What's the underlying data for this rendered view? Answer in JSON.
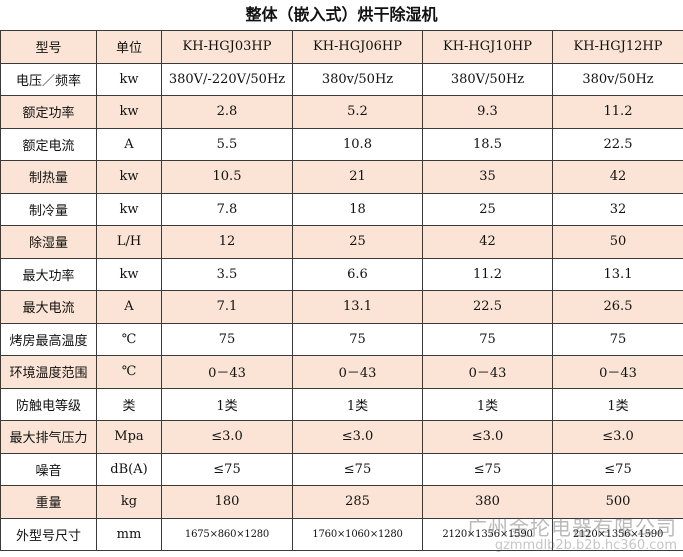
{
  "title": "整体（嵌入式）烘干除湿机",
  "table": {
    "header": [
      "型号",
      "单位",
      "KH-HGJ03HP",
      "KH-HGJ06HP",
      "KH-HGJ10HP",
      "KH-HGJ12HP"
    ],
    "rows": [
      {
        "label": "电压／频率",
        "unit": "kw",
        "values": [
          "380V/-220V/50Hz",
          "380v/50Hz",
          "380V/50Hz",
          "380v/50Hz"
        ]
      },
      {
        "label": "额定功率",
        "unit": "kw",
        "values": [
          "2.8",
          "5.2",
          "9.3",
          "11.2"
        ]
      },
      {
        "label": "额定电流",
        "unit": "A",
        "values": [
          "5.5",
          "10.8",
          "18.5",
          "22.5"
        ]
      },
      {
        "label": "制热量",
        "unit": "kw",
        "values": [
          "10.5",
          "21",
          "35",
          "42"
        ]
      },
      {
        "label": "制冷量",
        "unit": "kw",
        "values": [
          "7.8",
          "18",
          "25",
          "32"
        ]
      },
      {
        "label": "除湿量",
        "unit": "L/H",
        "values": [
          "12",
          "25",
          "42",
          "50"
        ]
      },
      {
        "label": "最大功率",
        "unit": "kw",
        "values": [
          "3.5",
          "6.6",
          "11.2",
          "13.1"
        ]
      },
      {
        "label": "最大电流",
        "unit": "A",
        "values": [
          "7.1",
          "13.1",
          "22.5",
          "26.5"
        ]
      },
      {
        "label": "烤房最高温度",
        "unit": "℃",
        "values": [
          "75",
          "75",
          "75",
          "75"
        ]
      },
      {
        "label": "环境温度范围",
        "unit": "℃",
        "values": [
          "0－43",
          "0－43",
          "0－43",
          "0－43"
        ]
      },
      {
        "label": "防触电等级",
        "unit": "类",
        "values": [
          "1类",
          "1类",
          "1类",
          "1类"
        ]
      },
      {
        "label": "最大排气压力",
        "unit": "Mpa",
        "values": [
          "≤3.0",
          "≤3.0",
          "≤3.0",
          "≤3.0"
        ]
      },
      {
        "label": "噪音",
        "unit": "dB(A)",
        "values": [
          "≤75",
          "≤75",
          "≤75",
          "≤75"
        ]
      },
      {
        "label": "重量",
        "unit": "kg",
        "values": [
          "180",
          "285",
          "380",
          "500"
        ]
      },
      {
        "label": "外型号尺寸",
        "unit": "mm",
        "values": [
          "1675×860×1280",
          "1760×1060×1280",
          "2120×1356×1590",
          "2120×1356×1590"
        ]
      }
    ]
  },
  "watermark": {
    "line1": "广州金抡电器有限公司",
    "line2": "gzmmdlb2b.b2b.hc360.com"
  }
}
